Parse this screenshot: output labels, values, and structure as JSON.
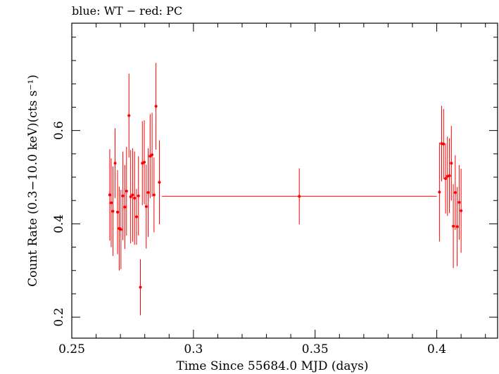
{
  "chart_data": {
    "type": "scatter",
    "title": "blue: WT − red: PC",
    "xlabel": "Time Since 55684.0 MJD (days)",
    "ylabel": "Count Rate (0.3−10.0 keV)(cts s⁻¹)",
    "xlim": [
      0.25,
      0.425
    ],
    "ylim": [
      0.155,
      0.83
    ],
    "xticks": [
      0.25,
      0.3,
      0.35,
      0.4
    ],
    "xtick_labels": [
      "0.25",
      "0.3",
      "0.35",
      "0.4"
    ],
    "yticks": [
      0.2,
      0.4,
      0.6
    ],
    "ytick_labels": [
      "0.2",
      "0.4",
      "0.6"
    ],
    "grid": false,
    "series": [
      {
        "color": "#ff0000",
        "points": [
          {
            "x": 0.2656,
            "y": 0.462,
            "xerr": 0.0003,
            "yerr": 0.098
          },
          {
            "x": 0.2662,
            "y": 0.445,
            "xerr": 0.0003,
            "yerr": 0.095
          },
          {
            "x": 0.2669,
            "y": 0.427,
            "xerr": 0.0003,
            "yerr": 0.096
          },
          {
            "x": 0.2678,
            "y": 0.53,
            "xerr": 0.0003,
            "yerr": 0.075
          },
          {
            "x": 0.2688,
            "y": 0.425,
            "xerr": 0.0003,
            "yerr": 0.09
          },
          {
            "x": 0.2695,
            "y": 0.39,
            "xerr": 0.0003,
            "yerr": 0.09
          },
          {
            "x": 0.2702,
            "y": 0.388,
            "xerr": 0.0003,
            "yerr": 0.085
          },
          {
            "x": 0.271,
            "y": 0.46,
            "xerr": 0.0003,
            "yerr": 0.095
          },
          {
            "x": 0.2718,
            "y": 0.436,
            "xerr": 0.0003,
            "yerr": 0.09
          },
          {
            "x": 0.2725,
            "y": 0.47,
            "xerr": 0.0003,
            "yerr": 0.095
          },
          {
            "x": 0.2735,
            "y": 0.632,
            "xerr": 0.0003,
            "yerr": 0.09
          },
          {
            "x": 0.2742,
            "y": 0.458,
            "xerr": 0.0003,
            "yerr": 0.1
          },
          {
            "x": 0.275,
            "y": 0.462,
            "xerr": 0.0003,
            "yerr": 0.1
          },
          {
            "x": 0.2758,
            "y": 0.455,
            "xerr": 0.0003,
            "yerr": 0.1
          },
          {
            "x": 0.2766,
            "y": 0.415,
            "xerr": 0.0003,
            "yerr": 0.06
          },
          {
            "x": 0.2774,
            "y": 0.46,
            "xerr": 0.0003,
            "yerr": 0.085
          },
          {
            "x": 0.2782,
            "y": 0.264,
            "xerr": 0.0003,
            "yerr": 0.06
          },
          {
            "x": 0.279,
            "y": 0.53,
            "xerr": 0.0003,
            "yerr": 0.09
          },
          {
            "x": 0.2798,
            "y": 0.532,
            "xerr": 0.0003,
            "yerr": 0.09
          },
          {
            "x": 0.2806,
            "y": 0.437,
            "xerr": 0.0003,
            "yerr": 0.09
          },
          {
            "x": 0.2814,
            "y": 0.467,
            "xerr": 0.0003,
            "yerr": 0.095
          },
          {
            "x": 0.2822,
            "y": 0.545,
            "xerr": 0.0003,
            "yerr": 0.09
          },
          {
            "x": 0.283,
            "y": 0.548,
            "xerr": 0.0003,
            "yerr": 0.09
          },
          {
            "x": 0.2838,
            "y": 0.462,
            "xerr": 0.0003,
            "yerr": 0.08
          },
          {
            "x": 0.2846,
            "y": 0.652,
            "xerr": 0.0003,
            "yerr": 0.093
          },
          {
            "x": 0.286,
            "y": 0.489,
            "xerr": 0.0006,
            "yerr": 0.09
          },
          {
            "x": 0.3435,
            "y": 0.459,
            "xerr": 0.0565,
            "yerr": 0.06
          },
          {
            "x": 0.4011,
            "y": 0.468,
            "xerr": 0.0005,
            "yerr": 0.106
          },
          {
            "x": 0.402,
            "y": 0.572,
            "xerr": 0.0003,
            "yerr": 0.081
          },
          {
            "x": 0.4028,
            "y": 0.571,
            "xerr": 0.0003,
            "yerr": 0.075
          },
          {
            "x": 0.4036,
            "y": 0.497,
            "xerr": 0.0003,
            "yerr": 0.075
          },
          {
            "x": 0.4044,
            "y": 0.502,
            "xerr": 0.0003,
            "yerr": 0.085
          },
          {
            "x": 0.4052,
            "y": 0.503,
            "xerr": 0.0003,
            "yerr": 0.08
          },
          {
            "x": 0.406,
            "y": 0.53,
            "xerr": 0.0003,
            "yerr": 0.08
          },
          {
            "x": 0.4068,
            "y": 0.395,
            "xerr": 0.0003,
            "yerr": 0.09
          },
          {
            "x": 0.4076,
            "y": 0.467,
            "xerr": 0.0003,
            "yerr": 0.08
          },
          {
            "x": 0.4084,
            "y": 0.394,
            "xerr": 0.0003,
            "yerr": 0.085
          },
          {
            "x": 0.4092,
            "y": 0.446,
            "xerr": 0.0003,
            "yerr": 0.08
          },
          {
            "x": 0.41,
            "y": 0.428,
            "xerr": 0.0003,
            "yerr": 0.09
          }
        ]
      }
    ]
  }
}
